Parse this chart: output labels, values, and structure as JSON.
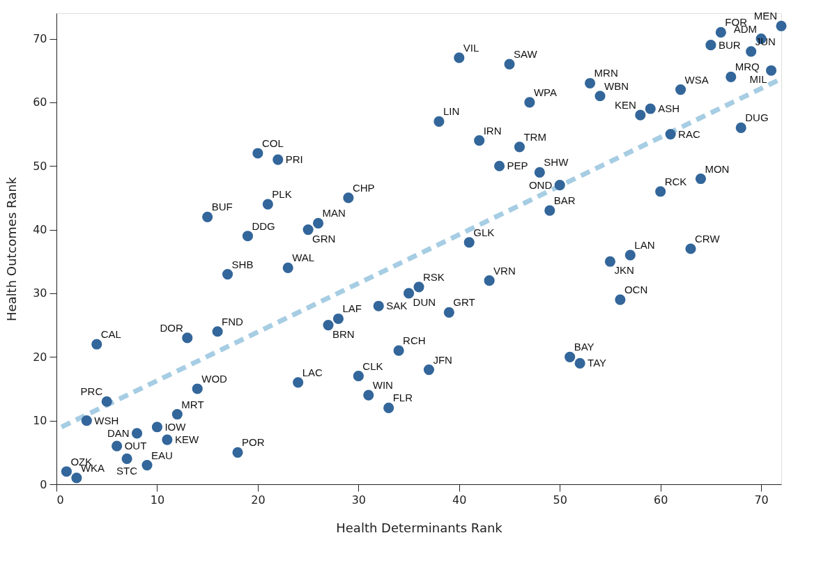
{
  "chart_data": {
    "type": "scatter",
    "xlabel": "Health Determinants Rank",
    "ylabel": "Health Outcomes Rank",
    "xlim": [
      0,
      72
    ],
    "ylim": [
      0,
      74
    ],
    "xticks": [
      0,
      10,
      20,
      30,
      40,
      50,
      60,
      70
    ],
    "yticks": [
      0,
      10,
      20,
      30,
      40,
      50,
      60,
      70
    ],
    "grid": false,
    "marker": "circle",
    "series": [
      {
        "color": "#33669a",
        "x": [
          1,
          2,
          3,
          4,
          5,
          6,
          7,
          8,
          9,
          10,
          11,
          12,
          13,
          14,
          15,
          16,
          17,
          18,
          19,
          20,
          21,
          22,
          23,
          24,
          25,
          26,
          27,
          28,
          29,
          30,
          31,
          32,
          33,
          34,
          35,
          36,
          37,
          38,
          39,
          40,
          41,
          42,
          43,
          44,
          45,
          46,
          47,
          48,
          49,
          50,
          51,
          52,
          53,
          54,
          55,
          56,
          57,
          58,
          59,
          60,
          61,
          62,
          63,
          64,
          65,
          66,
          67,
          68,
          69,
          70,
          71,
          72
        ],
        "values": [
          2,
          1,
          10,
          22,
          13,
          6,
          4,
          8,
          3,
          9,
          7,
          11,
          23,
          15,
          42,
          24,
          33,
          5,
          39,
          52,
          44,
          51,
          34,
          16,
          40,
          41,
          25,
          26,
          45,
          17,
          14,
          28,
          12,
          21,
          30,
          31,
          18,
          57,
          27,
          67,
          38,
          54,
          32,
          50,
          66,
          53,
          60,
          49,
          43,
          47,
          20,
          19,
          63,
          61,
          35,
          29,
          36,
          58,
          59,
          46,
          55,
          62,
          37,
          48,
          69,
          71,
          64,
          56,
          68,
          70,
          65,
          72
        ]
      },
      {
        "type": "line",
        "color": "#a6cde3",
        "line_style": "dashed",
        "marker": "none",
        "x": [
          0.5,
          72
        ],
        "values": [
          9,
          63.7
        ]
      }
    ],
    "annotations": [
      {
        "text": "OZK",
        "x": 1,
        "y": 2
      },
      {
        "text": "WKA",
        "x": 2,
        "y": 1
      },
      {
        "text": "WSH",
        "x": 3,
        "y": 10
      },
      {
        "text": "CAL",
        "x": 4,
        "y": 22
      },
      {
        "text": "PRC",
        "x": 5,
        "y": 13
      },
      {
        "text": "OUT",
        "x": 6,
        "y": 6
      },
      {
        "text": "STC",
        "x": 7,
        "y": 4
      },
      {
        "text": "DAN",
        "x": 8,
        "y": 8
      },
      {
        "text": "EAU",
        "x": 9,
        "y": 3
      },
      {
        "text": "IOW",
        "x": 10,
        "y": 9
      },
      {
        "text": "KEW",
        "x": 11,
        "y": 7
      },
      {
        "text": "MRT",
        "x": 12,
        "y": 11
      },
      {
        "text": "DOR",
        "x": 13,
        "y": 23
      },
      {
        "text": "WOD",
        "x": 14,
        "y": 15
      },
      {
        "text": "BUF",
        "x": 15,
        "y": 42
      },
      {
        "text": "FND",
        "x": 16,
        "y": 24
      },
      {
        "text": "SHB",
        "x": 17,
        "y": 33
      },
      {
        "text": "POR",
        "x": 18,
        "y": 5
      },
      {
        "text": "DDG",
        "x": 19,
        "y": 39
      },
      {
        "text": "COL",
        "x": 20,
        "y": 52
      },
      {
        "text": "PLK",
        "x": 21,
        "y": 44
      },
      {
        "text": "PRI",
        "x": 22,
        "y": 51
      },
      {
        "text": "WAL",
        "x": 23,
        "y": 34
      },
      {
        "text": "LAC",
        "x": 24,
        "y": 16
      },
      {
        "text": "GRN",
        "x": 25,
        "y": 40
      },
      {
        "text": "MAN",
        "x": 26,
        "y": 41
      },
      {
        "text": "BRN",
        "x": 27,
        "y": 25
      },
      {
        "text": "LAF",
        "x": 28,
        "y": 26
      },
      {
        "text": "CHP",
        "x": 29,
        "y": 45
      },
      {
        "text": "CLK",
        "x": 30,
        "y": 17
      },
      {
        "text": "WIN",
        "x": 31,
        "y": 14
      },
      {
        "text": "SAK",
        "x": 32,
        "y": 28
      },
      {
        "text": "FLR",
        "x": 33,
        "y": 12
      },
      {
        "text": "RCH",
        "x": 34,
        "y": 21
      },
      {
        "text": "DUN",
        "x": 35,
        "y": 30
      },
      {
        "text": "RSK",
        "x": 36,
        "y": 31
      },
      {
        "text": "JFN",
        "x": 37,
        "y": 18
      },
      {
        "text": "LIN",
        "x": 38,
        "y": 57
      },
      {
        "text": "GRT",
        "x": 39,
        "y": 27
      },
      {
        "text": "VIL",
        "x": 40,
        "y": 67
      },
      {
        "text": "GLK",
        "x": 41,
        "y": 38
      },
      {
        "text": "IRN",
        "x": 42,
        "y": 54
      },
      {
        "text": "VRN",
        "x": 43,
        "y": 32
      },
      {
        "text": "PEP",
        "x": 44,
        "y": 50
      },
      {
        "text": "SAW",
        "x": 45,
        "y": 66
      },
      {
        "text": "TRM",
        "x": 46,
        "y": 53
      },
      {
        "text": "WPA",
        "x": 47,
        "y": 60
      },
      {
        "text": "SHW",
        "x": 48,
        "y": 49
      },
      {
        "text": "BAR",
        "x": 49,
        "y": 43
      },
      {
        "text": "OND",
        "x": 50,
        "y": 47
      },
      {
        "text": "BAY",
        "x": 51,
        "y": 20
      },
      {
        "text": "TAY",
        "x": 52,
        "y": 19
      },
      {
        "text": "MRN",
        "x": 53,
        "y": 63
      },
      {
        "text": "WBN",
        "x": 54,
        "y": 61
      },
      {
        "text": "JKN",
        "x": 55,
        "y": 35
      },
      {
        "text": "OCN",
        "x": 56,
        "y": 29
      },
      {
        "text": "LAN",
        "x": 57,
        "y": 36
      },
      {
        "text": "KEN",
        "x": 58,
        "y": 58
      },
      {
        "text": "ASH",
        "x": 59,
        "y": 59
      },
      {
        "text": "RCK",
        "x": 60,
        "y": 46
      },
      {
        "text": "RAC",
        "x": 61,
        "y": 55
      },
      {
        "text": "WSA",
        "x": 62,
        "y": 62
      },
      {
        "text": "CRW",
        "x": 63,
        "y": 37
      },
      {
        "text": "MON",
        "x": 64,
        "y": 48
      },
      {
        "text": "BUR",
        "x": 65,
        "y": 69
      },
      {
        "text": "FOR",
        "x": 66,
        "y": 71
      },
      {
        "text": "MRQ",
        "x": 67,
        "y": 64
      },
      {
        "text": "DUG",
        "x": 68,
        "y": 56
      },
      {
        "text": "JUN",
        "x": 69,
        "y": 68
      },
      {
        "text": "ADM",
        "x": 70,
        "y": 70
      },
      {
        "text": "MIL",
        "x": 71,
        "y": 65
      },
      {
        "text": "MEN",
        "x": 72,
        "y": 72
      }
    ]
  }
}
